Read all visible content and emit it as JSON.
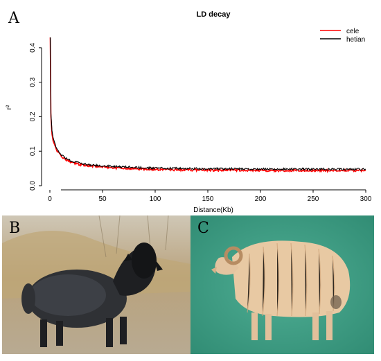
{
  "figure": {
    "panel_a_letter": "A",
    "panel_b_letter": "B",
    "panel_c_letter": "C"
  },
  "chart_data": {
    "type": "line",
    "title": "LD decay",
    "xlabel": "Distance(Kb)",
    "ylabel": "r²",
    "xlim": [
      0,
      300
    ],
    "ylim": [
      0,
      0.45
    ],
    "x_ticks": [
      0,
      50,
      100,
      150,
      200,
      250,
      300
    ],
    "y_ticks": [
      0.0,
      0.1,
      0.2,
      0.3,
      0.4
    ],
    "legend_position": "top-right",
    "series": [
      {
        "name": "cele",
        "color": "#ff0000",
        "x": [
          0.3,
          1,
          2,
          3,
          5,
          7,
          10,
          15,
          20,
          25,
          30,
          40,
          50,
          60,
          75,
          90,
          100,
          125,
          150,
          175,
          200,
          225,
          250,
          275,
          300
        ],
        "y": [
          0.43,
          0.2,
          0.15,
          0.13,
          0.115,
          0.1,
          0.088,
          0.075,
          0.068,
          0.064,
          0.06,
          0.057,
          0.054,
          0.052,
          0.05,
          0.048,
          0.047,
          0.046,
          0.045,
          0.045,
          0.044,
          0.044,
          0.044,
          0.044,
          0.044
        ]
      },
      {
        "name": "hetian",
        "color": "#000000",
        "x": [
          0.3,
          1,
          2,
          3,
          5,
          7,
          10,
          15,
          20,
          25,
          30,
          40,
          50,
          60,
          75,
          90,
          100,
          125,
          150,
          175,
          200,
          225,
          250,
          275,
          300
        ],
        "y": [
          0.43,
          0.21,
          0.16,
          0.14,
          0.12,
          0.105,
          0.092,
          0.08,
          0.072,
          0.068,
          0.064,
          0.06,
          0.058,
          0.056,
          0.054,
          0.052,
          0.051,
          0.05,
          0.049,
          0.049,
          0.048,
          0.048,
          0.048,
          0.048,
          0.048
        ]
      }
    ]
  }
}
